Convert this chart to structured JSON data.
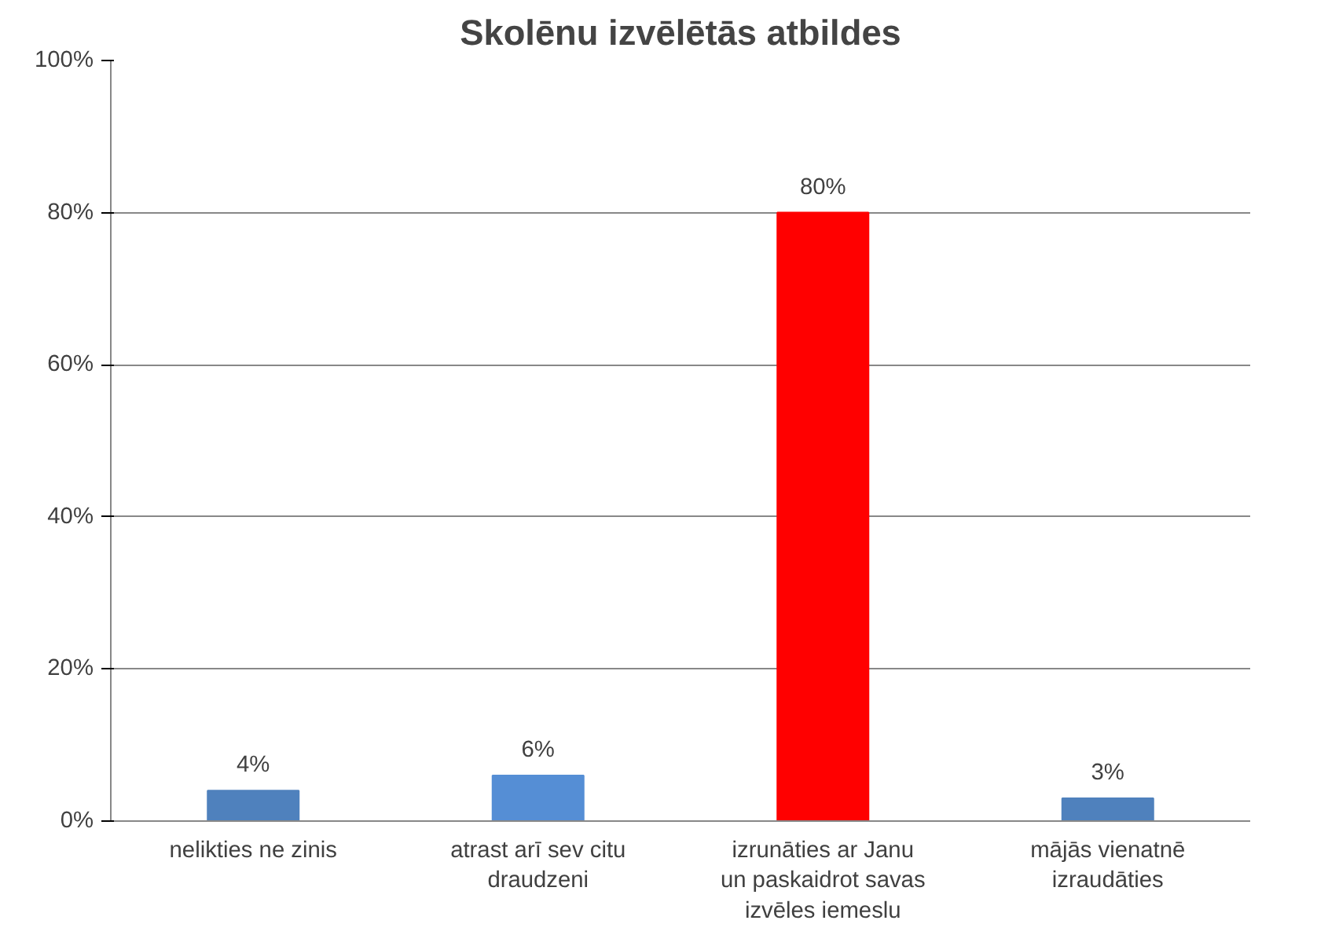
{
  "chart_data": {
    "type": "bar",
    "title": "Skolēnu izvēlētās atbildes",
    "categories": [
      "nelikties ne zinis",
      "atrast arī sev citu draudzeni",
      "izrunāties ar Janu un paskaidrot savas izvēles iemeslu",
      "mājās vienatnē izraudāties"
    ],
    "values": [
      4,
      6,
      80,
      3
    ],
    "colors": [
      "#4f81bd",
      "#558ed5",
      "#ff0000",
      "#4f81bd"
    ],
    "value_labels": [
      "4%",
      "6%",
      "80%",
      "3%"
    ],
    "ylim": [
      0,
      100
    ],
    "yticks": [
      {
        "value": 0,
        "label": "0%"
      },
      {
        "value": 20,
        "label": "20%"
      },
      {
        "value": 40,
        "label": "40%"
      },
      {
        "value": 60,
        "label": "60%"
      },
      {
        "value": 80,
        "label": "80%"
      },
      {
        "value": 100,
        "label": "100%"
      }
    ],
    "grid": "y"
  }
}
